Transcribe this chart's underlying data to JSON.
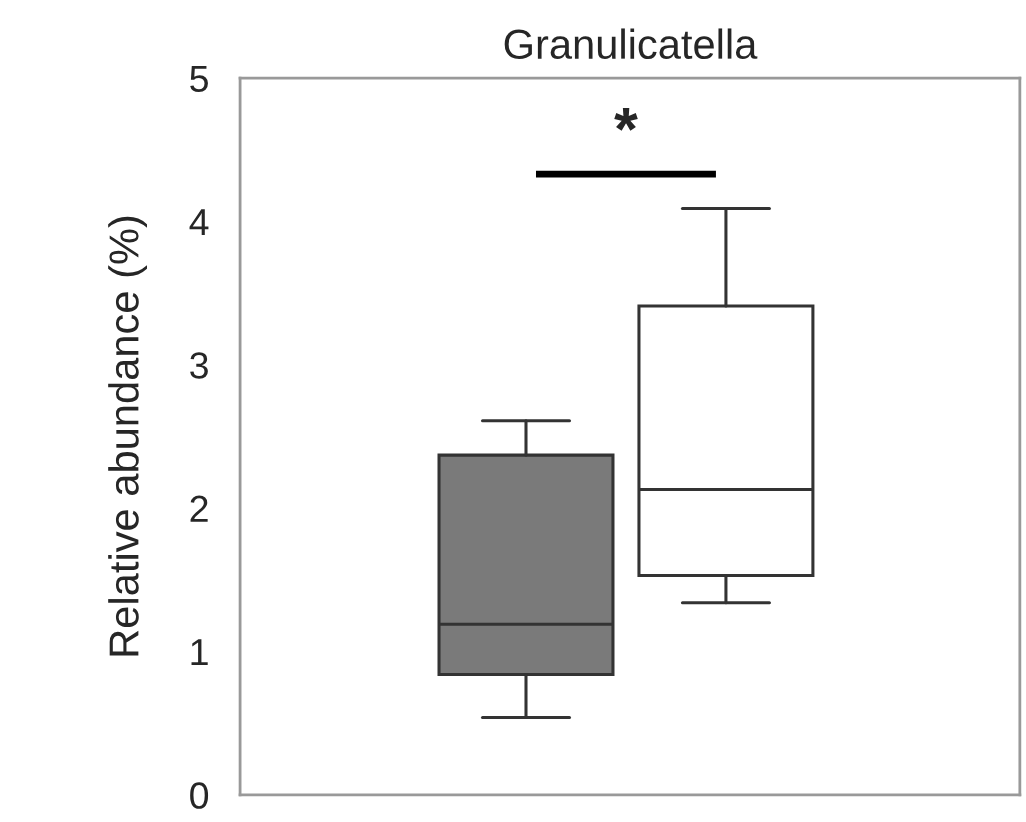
{
  "chart_data": {
    "type": "box",
    "title": "Granulicatella",
    "ylabel": "Relative abundance (%)",
    "categories": [
      null,
      null
    ],
    "boxes": [
      {
        "low": 0.54,
        "q1": 0.84,
        "median": 1.19,
        "q3": 2.37,
        "high": 2.61
      },
      {
        "low": 1.34,
        "q1": 1.53,
        "median": 2.13,
        "q3": 3.41,
        "high": 4.09
      }
    ],
    "colors": [
      "#7a7a7a",
      "#ffffff"
    ],
    "ylim": [
      0,
      5
    ],
    "yticks": [
      0,
      1,
      2,
      3,
      4,
      5
    ],
    "annotations": [
      "*"
    ],
    "grid": false
  }
}
